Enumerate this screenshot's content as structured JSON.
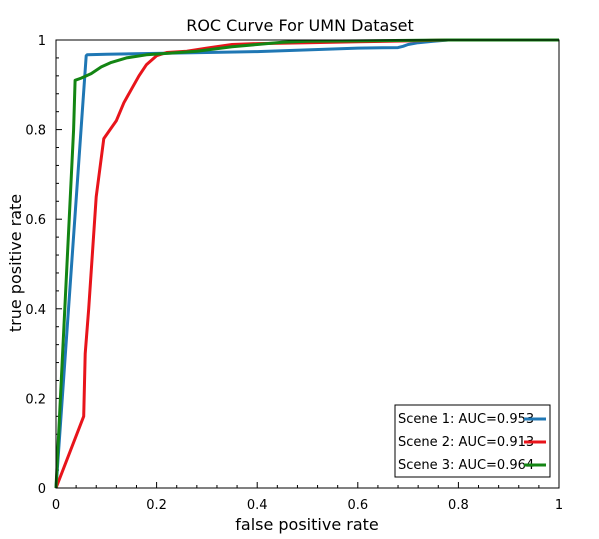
{
  "chart_data": {
    "type": "line",
    "title": "ROC Curve For UMN Dataset",
    "xlabel": "false positive rate",
    "ylabel": "true positive rate",
    "xlim": [
      0,
      1
    ],
    "ylim": [
      0,
      1
    ],
    "xticks": [
      "0",
      "0.2",
      "0.4",
      "0.6",
      "0.8",
      "1"
    ],
    "yticks": [
      "0",
      "0.2",
      "0.4",
      "0.6",
      "0.8",
      "1"
    ],
    "grid": false,
    "legend_position": "bottom-right",
    "series": [
      {
        "name": "Scene 1: AUC=0.953",
        "color": "#1f77b4",
        "x": [
          0,
          0.06,
          0.062,
          0.1,
          0.2,
          0.3,
          0.4,
          0.5,
          0.55,
          0.6,
          0.68,
          0.69,
          0.7,
          0.72,
          0.75,
          0.78,
          1
        ],
        "y": [
          0,
          0.965,
          0.967,
          0.968,
          0.97,
          0.972,
          0.974,
          0.978,
          0.98,
          0.982,
          0.983,
          0.986,
          0.99,
          0.994,
          0.997,
          1,
          1
        ]
      },
      {
        "name": "Scene 2: AUC=0.913",
        "color": "#e8141b",
        "x": [
          0,
          0.055,
          0.058,
          0.065,
          0.08,
          0.095,
          0.12,
          0.135,
          0.15,
          0.165,
          0.18,
          0.2,
          0.22,
          0.26,
          0.3,
          0.35,
          0.4,
          0.5,
          0.6,
          0.7,
          0.78,
          1
        ],
        "y": [
          0,
          0.16,
          0.3,
          0.4,
          0.65,
          0.78,
          0.82,
          0.86,
          0.89,
          0.92,
          0.945,
          0.965,
          0.972,
          0.975,
          0.982,
          0.99,
          0.992,
          0.994,
          0.996,
          0.998,
          1,
          1
        ]
      },
      {
        "name": "Scene 3: AUC=0.964",
        "color": "#138513",
        "x": [
          0,
          0.035,
          0.038,
          0.05,
          0.07,
          0.09,
          0.11,
          0.14,
          0.18,
          0.22,
          0.28,
          0.35,
          0.4,
          0.45,
          0.5,
          0.6,
          0.7,
          0.78,
          1
        ],
        "y": [
          0,
          0.8,
          0.91,
          0.915,
          0.925,
          0.94,
          0.95,
          0.96,
          0.967,
          0.97,
          0.975,
          0.985,
          0.99,
          0.995,
          0.997,
          0.998,
          0.999,
          1,
          1
        ]
      }
    ]
  }
}
